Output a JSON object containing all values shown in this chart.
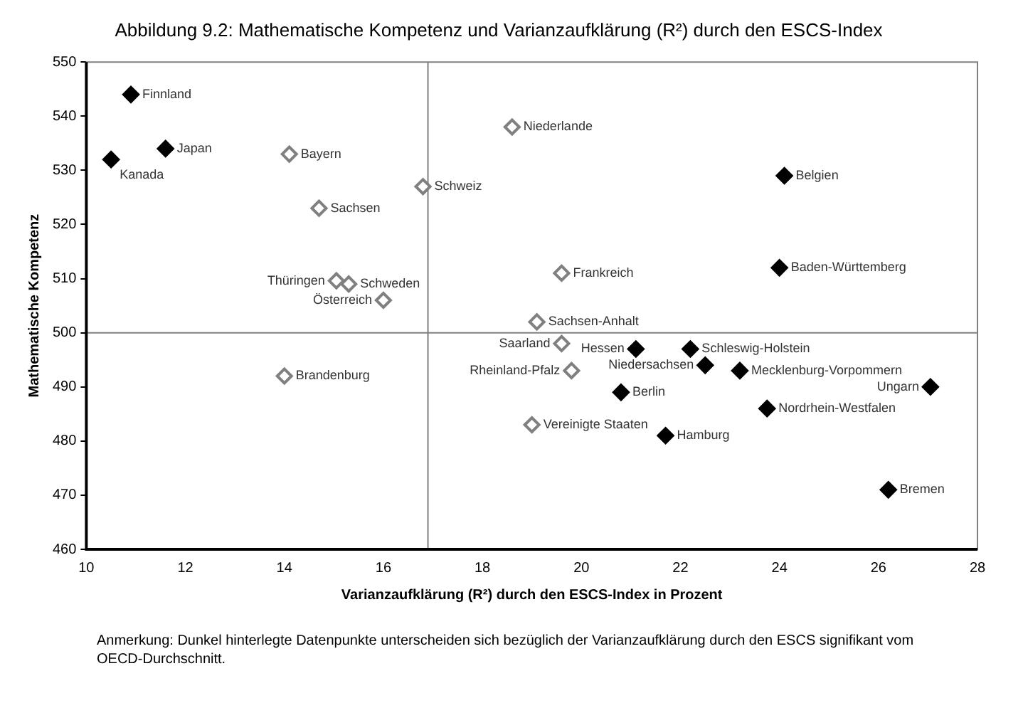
{
  "chart_data": {
    "type": "scatter",
    "title": "Abbildung 9.2: Mathematische Kompetenz und Varianzaufklärung (R²) durch den ESCS-Index",
    "xlabel": "Varianzaufklärung (R²) durch den ESCS-Index in Prozent",
    "ylabel": "Mathematische Kompetenz",
    "series": [
      {
        "color": "#000000",
        "x": [
          10.9,
          11.6,
          10.5,
          24.1,
          24.0,
          21.1,
          22.2,
          22.5,
          23.2,
          20.8,
          23.75,
          27.05,
          21.7,
          26.2
        ],
        "values": [
          544,
          534,
          532,
          529,
          512,
          497,
          497,
          494,
          493,
          489,
          486,
          490,
          481,
          471
        ]
      },
      {
        "color": "#808080",
        "x": [
          14.1,
          14.7,
          15.05,
          15.3,
          16.0,
          16.8,
          18.6,
          19.6,
          19.1,
          19.6,
          19.8,
          19.0,
          14.0
        ],
        "values": [
          533,
          523,
          509.6,
          509,
          506,
          527,
          538,
          511,
          502,
          498,
          493,
          483,
          492
        ]
      }
    ],
    "xlim": [
      10,
      28
    ],
    "xticks": [
      10,
      12,
      14,
      16,
      18,
      20,
      22,
      24,
      26,
      28
    ],
    "ylim": [
      460,
      550
    ],
    "yticks": [
      460,
      470,
      480,
      490,
      500,
      510,
      520,
      530,
      540,
      550
    ],
    "grid": false,
    "legend": false,
    "marker": "diamond",
    "ref_lines": [
      {
        "axis": "x",
        "value": 16.9,
        "color": "#808080"
      },
      {
        "axis": "y",
        "value": 500,
        "color": "#808080"
      }
    ],
    "annotations": [
      {
        "text": "Finnland",
        "x": 10.9,
        "y": 544
      },
      {
        "text": "Japan",
        "x": 11.6,
        "y": 534
      },
      {
        "text": "Kanada",
        "x": 10.5,
        "y": 532
      },
      {
        "text": "Belgien",
        "x": 24.1,
        "y": 529
      },
      {
        "text": "Baden-Württemberg",
        "x": 24.0,
        "y": 512
      },
      {
        "text": "Hessen",
        "x": 21.1,
        "y": 497
      },
      {
        "text": "Schleswig-Holstein",
        "x": 22.2,
        "y": 497
      },
      {
        "text": "Niedersachsen",
        "x": 22.5,
        "y": 494
      },
      {
        "text": "Mecklenburg-Vorpommern",
        "x": 23.2,
        "y": 493
      },
      {
        "text": "Berlin",
        "x": 20.8,
        "y": 489
      },
      {
        "text": "Nordrhein-Westfalen",
        "x": 23.75,
        "y": 486
      },
      {
        "text": "Ungarn",
        "x": 27.05,
        "y": 490
      },
      {
        "text": "Hamburg",
        "x": 21.7,
        "y": 481
      },
      {
        "text": "Bremen",
        "x": 26.2,
        "y": 471
      },
      {
        "text": "Bayern",
        "x": 14.1,
        "y": 533
      },
      {
        "text": "Sachsen",
        "x": 14.7,
        "y": 523
      },
      {
        "text": "Thüringen",
        "x": 15.05,
        "y": 509.6
      },
      {
        "text": "Schweden",
        "x": 15.3,
        "y": 509
      },
      {
        "text": "Österreich",
        "x": 16.0,
        "y": 506
      },
      {
        "text": "Schweiz",
        "x": 16.8,
        "y": 527
      },
      {
        "text": "Niederlande",
        "x": 18.6,
        "y": 538
      },
      {
        "text": "Frankreich",
        "x": 19.6,
        "y": 511
      },
      {
        "text": "Sachsen-Anhalt",
        "x": 19.1,
        "y": 502
      },
      {
        "text": "Saarland",
        "x": 19.6,
        "y": 498
      },
      {
        "text": "Rheinland-Pfalz",
        "x": 19.8,
        "y": 493
      },
      {
        "text": "Vereinigte Staaten",
        "x": 19.0,
        "y": 483
      },
      {
        "text": "Brandenburg",
        "x": 14.0,
        "y": 492
      },
      "Anmerkung: Dunkel hinterlegte Datenpunkte unterscheiden sich bezüglich der Varianzaufklärung durch den ESCS signifikant vom OECD-Durchschnitt."
    ]
  }
}
